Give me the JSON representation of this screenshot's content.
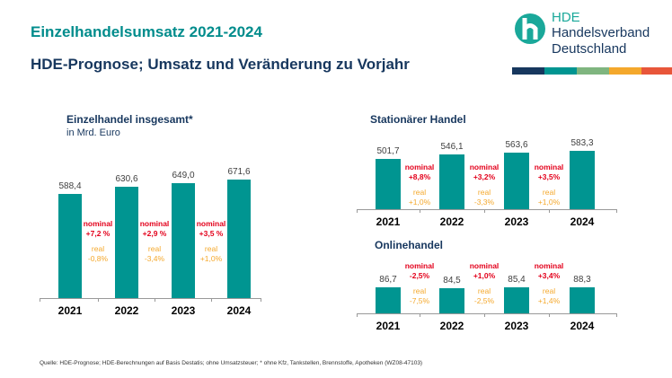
{
  "title": "Einzelhandelsumsatz 2021-2024",
  "subtitle": "HDE-Prognose; Umsatz und Veränderung zu Vorjahr",
  "logo": {
    "line1": "HDE",
    "line2": "Handelsverband",
    "line3": "Deutschland",
    "stripe_colors": [
      "#17375e",
      "#009591",
      "#7fb57f",
      "#f4a82c",
      "#e8563a"
    ]
  },
  "source": "Quelle: HDE-Prognose; HDE-Berechnungen auf Basis Destatis; ohne Umsatzsteuer; * ohne Kfz, Tankstellen, Brennstoffe, Apotheken (WZ08-47103)",
  "chart_data": [
    {
      "type": "bar",
      "title": "Einzelhandel insgesamt*",
      "subtitle": "in Mrd. Euro",
      "categories": [
        "2021",
        "2022",
        "2023",
        "2024"
      ],
      "values": [
        588.4,
        630.6,
        649.0,
        671.6
      ],
      "value_labels": [
        "588,4",
        "630,6",
        "649,0",
        "671,6"
      ],
      "annotations": [
        {
          "nominal_label": "nominal",
          "nominal": "+7,2 %",
          "real_label": "real",
          "real": "-0,8%"
        },
        {
          "nominal_label": "nominal",
          "nominal": "+2,9 %",
          "real_label": "real",
          "real": "-3,4%"
        },
        {
          "nominal_label": "nominal",
          "nominal": "+3,5 %",
          "real_label": "real",
          "real": "+1,0%"
        }
      ]
    },
    {
      "type": "bar",
      "title": "Stationärer Handel",
      "categories": [
        "2021",
        "2022",
        "2023",
        "2024"
      ],
      "values": [
        501.7,
        546.1,
        563.6,
        583.3
      ],
      "value_labels": [
        "501,7",
        "546,1",
        "563,6",
        "583,3"
      ],
      "annotations": [
        {
          "nominal_label": "nominal",
          "nominal": "+8,8%",
          "real_label": "real",
          "real": "+1,0%"
        },
        {
          "nominal_label": "nominal",
          "nominal": "+3,2%",
          "real_label": "real",
          "real": "-3,3%"
        },
        {
          "nominal_label": "nominal",
          "nominal": "+3,5%",
          "real_label": "real",
          "real": "+1,0%"
        }
      ]
    },
    {
      "type": "bar",
      "title": "Onlinehandel",
      "categories": [
        "2021",
        "2022",
        "2023",
        "2024"
      ],
      "values": [
        86.7,
        84.5,
        85.4,
        88.3
      ],
      "value_labels": [
        "86,7",
        "84,5",
        "85,4",
        "88,3"
      ],
      "annotations": [
        {
          "nominal_label": "nominal",
          "nominal": "-2,5%",
          "real_label": "real",
          "real": "-7,5%"
        },
        {
          "nominal_label": "nominal",
          "nominal": "+1,0%",
          "real_label": "real",
          "real": "-2,5%"
        },
        {
          "nominal_label": "nominal",
          "nominal": "+3,4%",
          "real_label": "real",
          "real": "+1,4%"
        }
      ]
    }
  ]
}
